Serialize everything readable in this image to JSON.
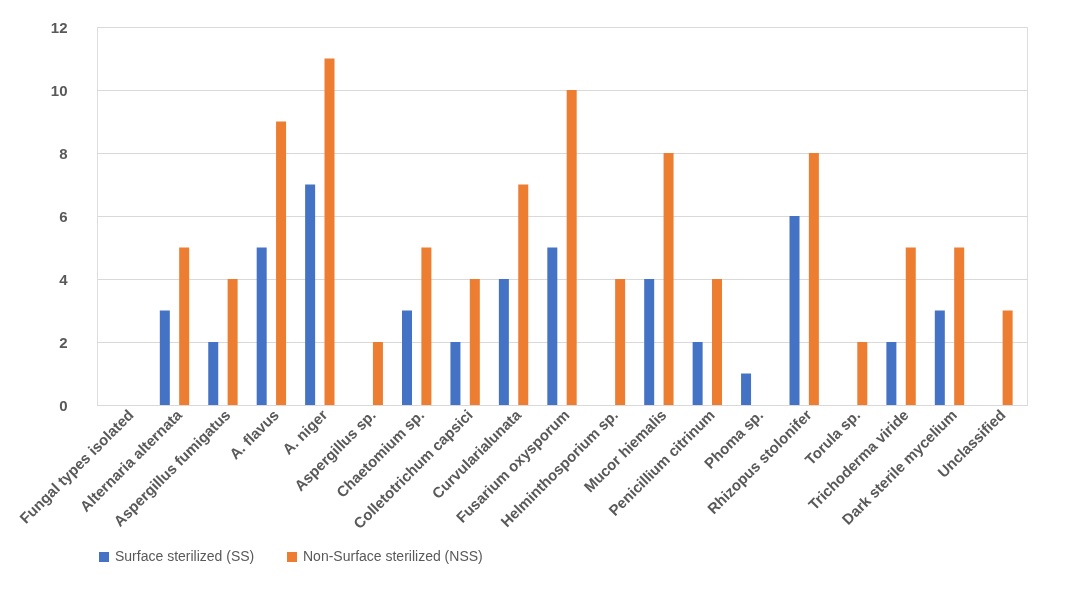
{
  "chart_data": {
    "type": "bar",
    "categories": [
      "Fungal types isolated",
      "Alternaria alternata",
      "Aspergillus fumigatus",
      "A. flavus",
      "A. niger",
      "Aspergillus sp.",
      "Chaetomium sp.",
      "Colletotrichum capsici",
      "Curvularialunata",
      "Fusarium oxysporum",
      "Helminthosporium sp.",
      "Mucor hiemalis",
      "Penicillium citrinum",
      "Phoma sp.",
      "Rhizopus stolonifer",
      "Torula sp.",
      "Trichoderma viride",
      "Dark sterile mycelium",
      "Unclassified"
    ],
    "series": [
      {
        "name": "Surface sterilized (SS)",
        "color": "#4472c4",
        "values": [
          null,
          3,
          2,
          5,
          7,
          null,
          3,
          2,
          4,
          5,
          null,
          4,
          2,
          1,
          6,
          null,
          2,
          3,
          null
        ]
      },
      {
        "name": "Non-Surface sterilized (NSS)",
        "color": "#ed7d31",
        "values": [
          null,
          5,
          4,
          9,
          11,
          2,
          5,
          4,
          7,
          10,
          4,
          8,
          4,
          null,
          8,
          2,
          5,
          5,
          3
        ]
      }
    ],
    "ylim": [
      0,
      12
    ],
    "yticks": [
      0,
      2,
      4,
      6,
      8,
      10,
      12
    ],
    "grid": "y",
    "legend": "bottom"
  }
}
